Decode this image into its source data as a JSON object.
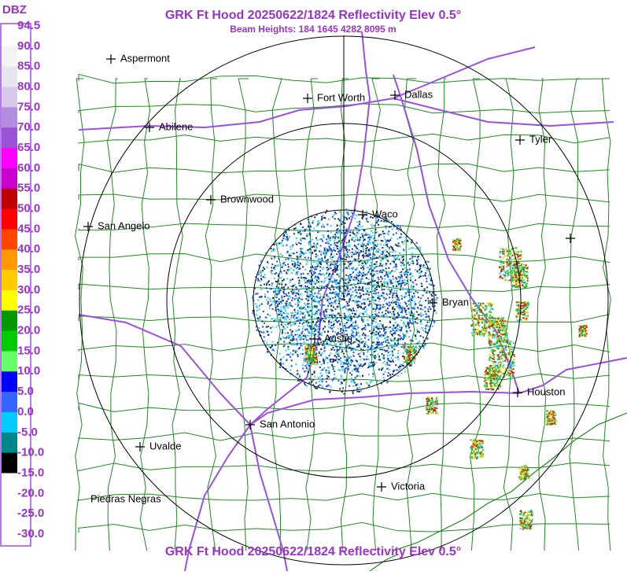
{
  "header": {
    "title": "GRK Ft Hood 20250622/1824 Reflectivity Elev 0.5°",
    "subtitle": "Beam Heights: 184 1645 4282 8095 m"
  },
  "footer": {
    "title": "GRK Ft Hood 20250622/1824 Reflectivity Elev 0.5°"
  },
  "legend": {
    "unit": "DBZ",
    "labels": [
      "94.5",
      "90.0",
      "85.0",
      "80.0",
      "75.0",
      "70.0",
      "65.0",
      "60.0",
      "55.0",
      "50.0",
      "45.0",
      "40.0",
      "35.0",
      "30.0",
      "25.0",
      "20.0",
      "15.0",
      "10.0",
      "5.0",
      "0.0",
      "-5.0",
      "-10.0",
      "-15.0",
      "-20.0",
      "-25.0",
      "-30.0"
    ],
    "colors": [
      "#ffffff",
      "#f4f4f4",
      "#e6e6f0",
      "#d8c8ec",
      "#b48ce0",
      "#9a52d6",
      "#ff00ff",
      "#cc00cc",
      "#c00000",
      "#ff0000",
      "#ff4500",
      "#ff9900",
      "#ffcc00",
      "#ffff00",
      "#009900",
      "#00cc00",
      "#66ff66",
      "#0000ff",
      "#3366ff",
      "#00ccff",
      "#008888",
      "#000000",
      "#ffffff",
      "#ffffff",
      "#ffffff"
    ]
  },
  "cities": [
    {
      "label": "Aspermont"
    },
    {
      "label": "Fort Worth"
    },
    {
      "label": "Dallas"
    },
    {
      "label": "Abilene"
    },
    {
      "label": "Tyler"
    },
    {
      "label": "Brownwood"
    },
    {
      "label": "Waco"
    },
    {
      "label": "San Angelo"
    },
    {
      "label": "Bryan"
    },
    {
      "label": "Austin"
    },
    {
      "label": "Houston"
    },
    {
      "label": "San Antonio"
    },
    {
      "label": "Uvalde"
    },
    {
      "label": "Victoria"
    },
    {
      "label": "Piedras Negras"
    }
  ]
}
